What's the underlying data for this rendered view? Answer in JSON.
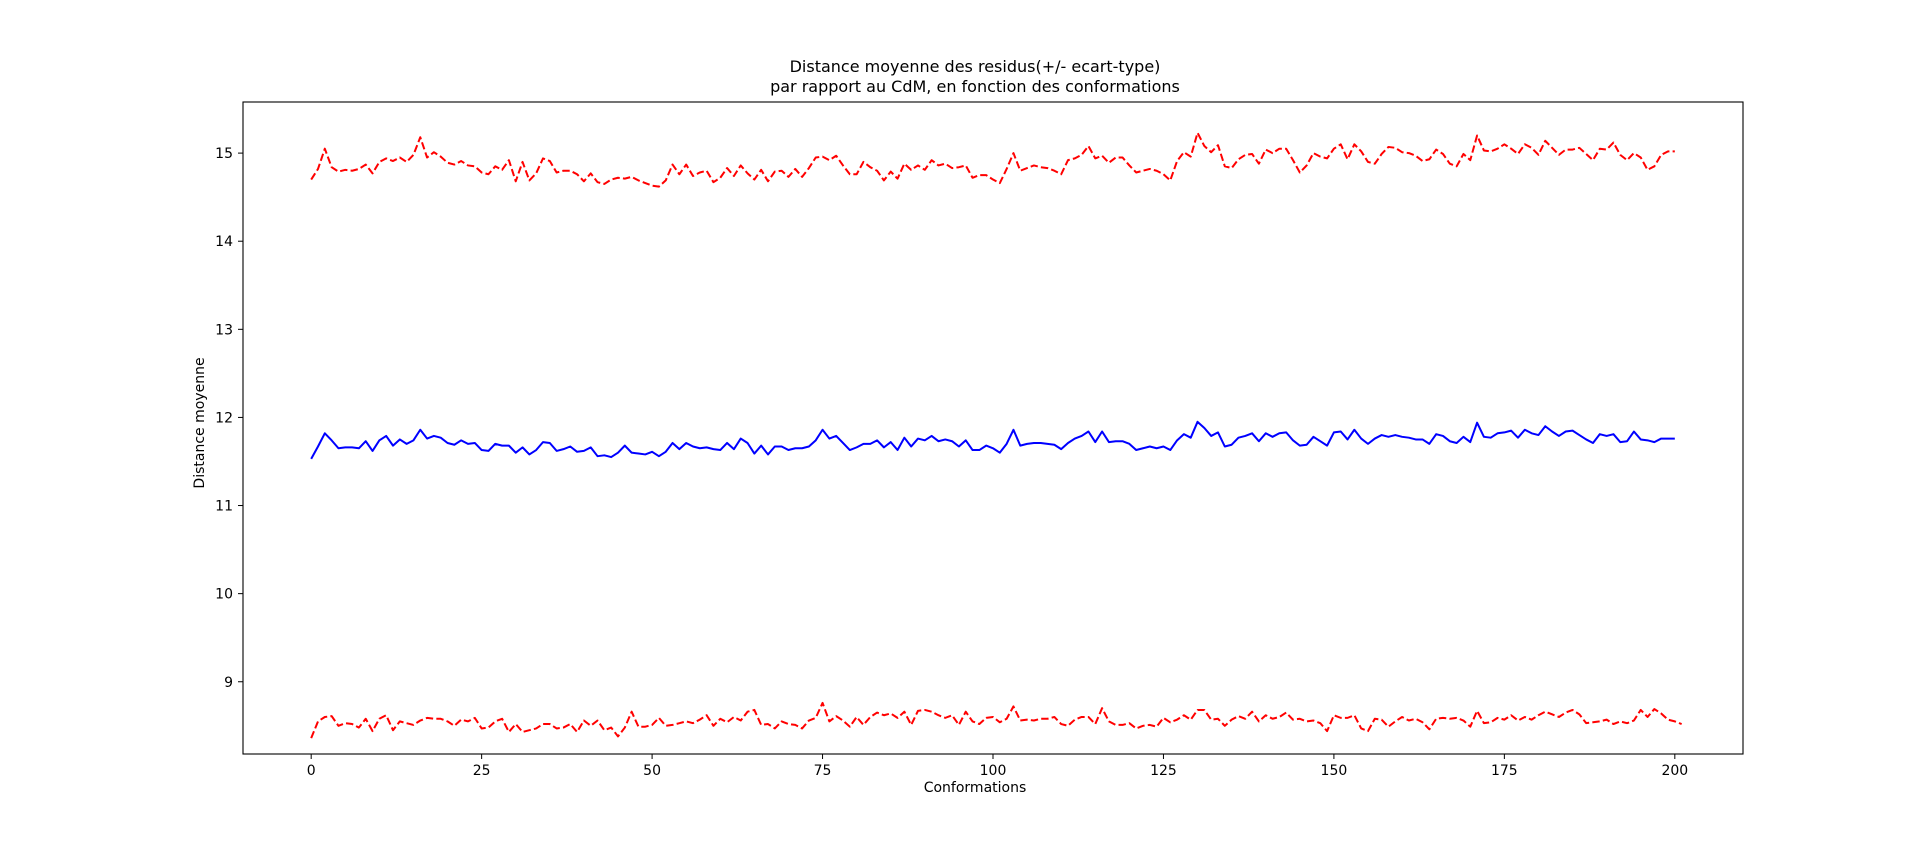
{
  "chart_data": {
    "type": "line",
    "title_lines": [
      "Distance moyenne des residus(+/- ecart-type)",
      "par rapport au CdM, en fonction des conformations"
    ],
    "xlabel": "Conformations",
    "ylabel": "Distance moyenne",
    "xlim": [
      -10,
      210
    ],
    "ylim": [
      8.18,
      15.58
    ],
    "xticks": [
      0,
      25,
      50,
      75,
      100,
      125,
      150,
      175,
      200
    ],
    "yticks": [
      9,
      10,
      11,
      12,
      13,
      14,
      15
    ],
    "x_start": 0,
    "x_step": 1,
    "series": [
      {
        "color": "#0000ff",
        "dash": "solid",
        "values": [
          11.53,
          11.67,
          11.82,
          11.74,
          11.65,
          11.66,
          11.66,
          11.65,
          11.73,
          11.62,
          11.74,
          11.79,
          11.68,
          11.75,
          11.7,
          11.74,
          11.86,
          11.76,
          11.79,
          11.77,
          11.71,
          11.69,
          11.74,
          11.7,
          11.71,
          11.63,
          11.62,
          11.7,
          11.68,
          11.68,
          11.6,
          11.66,
          11.58,
          11.63,
          11.72,
          11.71,
          11.62,
          11.64,
          11.67,
          11.61,
          11.62,
          11.66,
          11.56,
          11.57,
          11.55,
          11.6,
          11.68,
          11.6,
          11.59,
          11.58,
          11.61,
          11.56,
          11.61,
          11.71,
          11.64,
          11.71,
          11.67,
          11.65,
          11.66,
          11.64,
          11.63,
          11.71,
          11.64,
          11.76,
          11.71,
          11.59,
          11.68,
          11.58,
          11.67,
          11.67,
          11.63,
          11.65,
          11.65,
          11.67,
          11.74,
          11.86,
          11.76,
          11.79,
          11.71,
          11.63,
          11.66,
          11.7,
          11.7,
          11.74,
          11.66,
          11.72,
          11.63,
          11.77,
          11.67,
          11.76,
          11.74,
          11.79,
          11.73,
          11.75,
          11.73,
          11.67,
          11.74,
          11.63,
          11.63,
          11.68,
          11.65,
          11.6,
          11.7,
          11.86,
          11.68,
          11.7,
          11.71,
          11.71,
          11.7,
          11.69,
          11.64,
          11.71,
          11.76,
          11.79,
          11.84,
          11.72,
          11.84,
          11.72,
          11.73,
          11.73,
          11.7,
          11.63,
          11.65,
          11.67,
          11.65,
          11.67,
          11.63,
          11.74,
          11.81,
          11.77,
          11.95,
          11.88,
          11.79,
          11.83,
          11.67,
          11.69,
          11.77,
          11.79,
          11.82,
          11.73,
          11.82,
          11.78,
          11.82,
          11.83,
          11.74,
          11.68,
          11.69,
          11.78,
          11.73,
          11.68,
          11.83,
          11.84,
          11.75,
          11.86,
          11.76,
          11.7,
          11.76,
          11.8,
          11.78,
          11.8,
          11.78,
          11.77,
          11.75,
          11.75,
          11.7,
          11.81,
          11.79,
          11.73,
          11.71,
          11.78,
          11.72,
          11.94,
          11.78,
          11.77,
          11.82,
          11.83,
          11.85,
          11.77,
          11.86,
          11.82,
          11.8,
          11.9,
          11.84,
          11.79,
          11.84,
          11.85,
          11.8,
          11.75,
          11.71,
          11.81,
          11.79,
          11.81,
          11.72,
          11.73,
          11.84,
          11.75,
          11.74,
          11.72,
          11.76,
          11.76,
          11.76
        ]
      },
      {
        "color": "#ff0000",
        "dash": "dashed",
        "values": [
          14.7,
          14.82,
          15.05,
          14.84,
          14.79,
          14.81,
          14.8,
          14.82,
          14.87,
          14.77,
          14.9,
          14.94,
          14.91,
          14.95,
          14.9,
          14.98,
          15.18,
          14.95,
          15.01,
          14.96,
          14.89,
          14.87,
          14.91,
          14.86,
          14.85,
          14.78,
          14.76,
          14.85,
          14.81,
          14.92,
          14.68,
          14.9,
          14.69,
          14.77,
          14.94,
          14.91,
          14.78,
          14.8,
          14.8,
          14.76,
          14.68,
          14.77,
          14.67,
          14.65,
          14.7,
          14.72,
          14.71,
          14.73,
          14.69,
          14.66,
          14.63,
          14.62,
          14.69,
          14.87,
          14.76,
          14.87,
          14.74,
          14.78,
          14.8,
          14.67,
          14.72,
          14.83,
          14.74,
          14.86,
          14.77,
          14.7,
          14.81,
          14.68,
          14.79,
          14.8,
          14.73,
          14.82,
          14.73,
          14.83,
          14.95,
          14.96,
          14.92,
          14.97,
          14.86,
          14.76,
          14.76,
          14.9,
          14.84,
          14.8,
          14.69,
          14.79,
          14.71,
          14.88,
          14.81,
          14.86,
          14.81,
          14.92,
          14.86,
          14.88,
          14.83,
          14.84,
          14.86,
          14.72,
          14.75,
          14.75,
          14.7,
          14.66,
          14.82,
          15.0,
          14.8,
          14.83,
          14.86,
          14.84,
          14.83,
          14.8,
          14.76,
          14.92,
          14.94,
          14.98,
          15.08,
          14.94,
          14.97,
          14.89,
          14.95,
          14.95,
          14.86,
          14.78,
          14.8,
          14.82,
          14.8,
          14.76,
          14.69,
          14.91,
          15.01,
          14.96,
          15.23,
          15.08,
          15.01,
          15.09,
          14.85,
          14.83,
          14.93,
          14.98,
          14.99,
          14.88,
          15.04,
          15.0,
          15.05,
          15.05,
          14.92,
          14.78,
          14.86,
          15.0,
          14.96,
          14.94,
          15.05,
          15.1,
          14.93,
          15.1,
          15.02,
          14.9,
          14.88,
          14.99,
          15.07,
          15.06,
          15.01,
          15.0,
          14.97,
          14.91,
          14.93,
          15.04,
          14.99,
          14.88,
          14.85,
          14.99,
          14.92,
          15.2,
          15.03,
          15.02,
          15.05,
          15.1,
          15.05,
          14.99,
          15.1,
          15.06,
          14.98,
          15.14,
          15.06,
          14.98,
          15.04,
          15.04,
          15.06,
          14.99,
          14.92,
          15.05,
          15.04,
          15.12,
          14.98,
          14.92,
          15.0,
          14.95,
          14.81,
          14.85,
          14.98,
          15.02,
          15.02
        ]
      },
      {
        "color": "#ff0000",
        "dash": "dashed",
        "values": [
          8.36,
          8.55,
          8.6,
          8.61,
          8.5,
          8.53,
          8.52,
          8.48,
          8.58,
          8.44,
          8.58,
          8.62,
          8.45,
          8.55,
          8.53,
          8.51,
          8.56,
          8.59,
          8.58,
          8.58,
          8.55,
          8.5,
          8.57,
          8.55,
          8.59,
          8.47,
          8.48,
          8.55,
          8.58,
          8.43,
          8.52,
          8.43,
          8.45,
          8.47,
          8.52,
          8.52,
          8.47,
          8.48,
          8.52,
          8.43,
          8.56,
          8.5,
          8.56,
          8.45,
          8.48,
          8.38,
          8.48,
          8.66,
          8.49,
          8.49,
          8.51,
          8.59,
          8.5,
          8.51,
          8.53,
          8.55,
          8.53,
          8.57,
          8.62,
          8.5,
          8.58,
          8.54,
          8.6,
          8.56,
          8.66,
          8.68,
          8.51,
          8.52,
          8.47,
          8.55,
          8.52,
          8.51,
          8.47,
          8.56,
          8.59,
          8.76,
          8.55,
          8.61,
          8.56,
          8.49,
          8.6,
          8.51,
          8.6,
          8.65,
          8.62,
          8.64,
          8.59,
          8.66,
          8.51,
          8.67,
          8.68,
          8.66,
          8.62,
          8.59,
          8.62,
          8.51,
          8.66,
          8.55,
          8.52,
          8.59,
          8.6,
          8.54,
          8.58,
          8.72,
          8.56,
          8.57,
          8.56,
          8.58,
          8.58,
          8.6,
          8.52,
          8.5,
          8.57,
          8.6,
          8.6,
          8.52,
          8.7,
          8.55,
          8.51,
          8.51,
          8.53,
          8.47,
          8.5,
          8.51,
          8.49,
          8.59,
          8.54,
          8.57,
          8.62,
          8.57,
          8.68,
          8.68,
          8.57,
          8.58,
          8.5,
          8.57,
          8.61,
          8.58,
          8.66,
          8.55,
          8.62,
          8.58,
          8.6,
          8.65,
          8.57,
          8.58,
          8.55,
          8.56,
          8.53,
          8.44,
          8.62,
          8.59,
          8.59,
          8.62,
          8.47,
          8.44,
          8.58,
          8.57,
          8.49,
          8.55,
          8.6,
          8.56,
          8.58,
          8.54,
          8.46,
          8.58,
          8.59,
          8.58,
          8.59,
          8.56,
          8.49,
          8.67,
          8.53,
          8.54,
          8.59,
          8.57,
          8.62,
          8.56,
          8.6,
          8.57,
          8.62,
          8.66,
          8.63,
          8.6,
          8.65,
          8.68,
          8.63,
          8.53,
          8.54,
          8.55,
          8.57,
          8.52,
          8.55,
          8.53,
          8.56,
          8.68,
          8.6,
          8.69,
          8.64,
          8.57,
          8.55,
          8.52
        ]
      }
    ],
    "grid": false,
    "legend": "none"
  }
}
